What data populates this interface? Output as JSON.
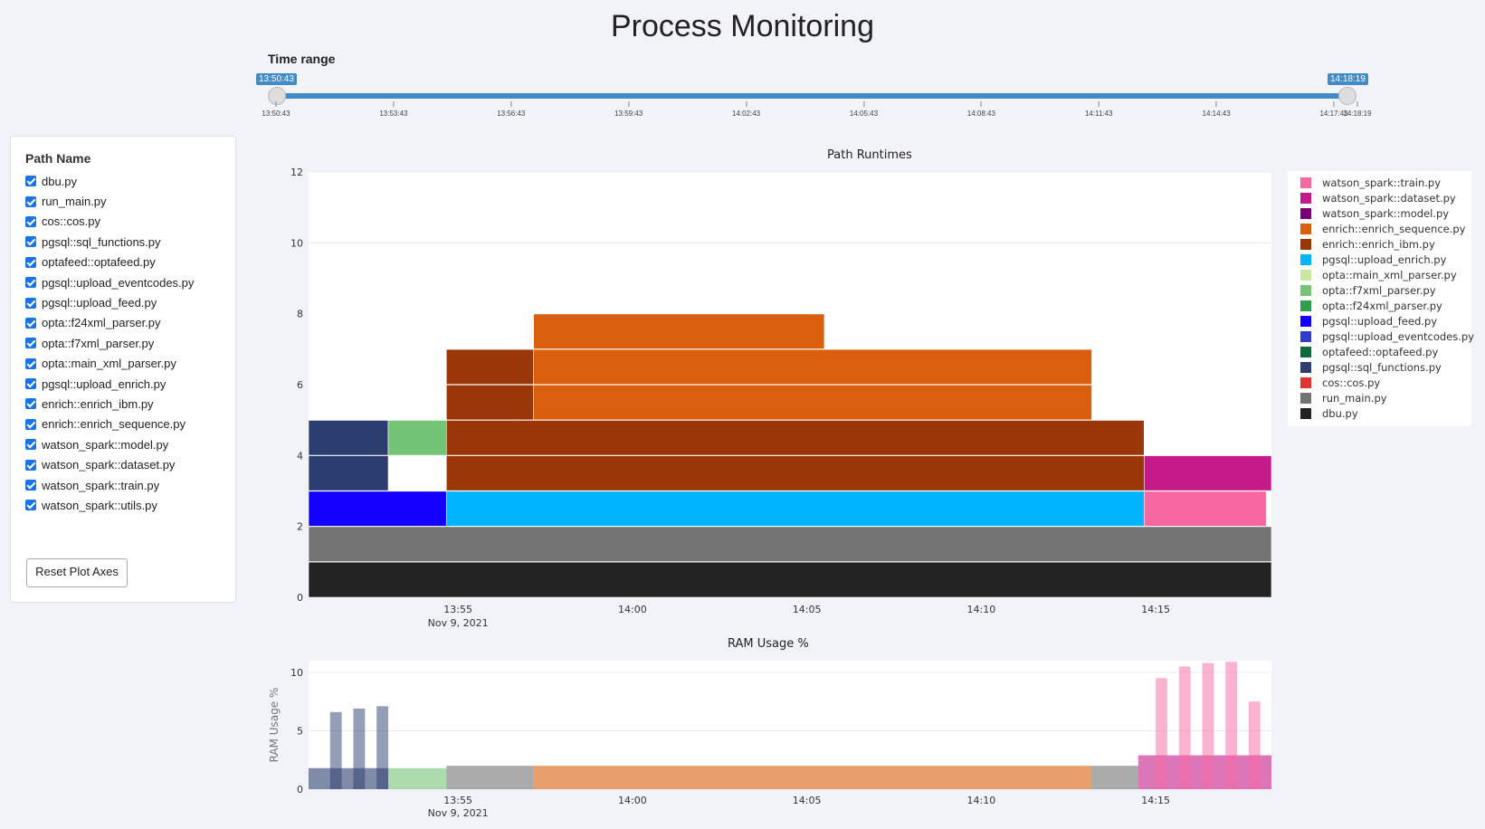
{
  "page_title": "Process Monitoring",
  "slider": {
    "label": "Time range",
    "start": "13:50:43",
    "end": "14:18:19",
    "marks": [
      "13:50:43",
      "13:53:43",
      "13:56:43",
      "13:59:43",
      "14:02:43",
      "14:05:43",
      "14:08:43",
      "14:11:43",
      "14:14:43",
      "14:17:43",
      "14:18:19"
    ]
  },
  "sidebar": {
    "title": "Path Name",
    "items": [
      "dbu.py",
      "run_main.py",
      "cos::cos.py",
      "pgsql::sql_functions.py",
      "optafeed::optafeed.py",
      "pgsql::upload_eventcodes.py",
      "pgsql::upload_feed.py",
      "opta::f24xml_parser.py",
      "opta::f7xml_parser.py",
      "opta::main_xml_parser.py",
      "pgsql::upload_enrich.py",
      "enrich::enrich_ibm.py",
      "enrich::enrich_sequence.py",
      "watson_spark::model.py",
      "watson_spark::dataset.py",
      "watson_spark::train.py",
      "watson_spark::utils.py"
    ],
    "reset_label": "Reset Plot Axes"
  },
  "colors": {
    "dbu": "#222222",
    "run_main": "#737373",
    "cos": "#e3342f",
    "sql_functions": "#2c3e70",
    "optafeed": "#0b6b3a",
    "upload_eventcodes": "#2f3ec8",
    "upload_feed": "#1400ff",
    "f24xml": "#2ca04c",
    "f7xml": "#74c476",
    "main_xml": "#c7e9a0",
    "upload_enrich": "#00b4ff",
    "enrich_ibm": "#9b3608",
    "enrich_sequence": "#d95f0e",
    "model": "#7a0177",
    "dataset": "#c51b8a",
    "train": "#f768a1"
  },
  "chart_data": [
    {
      "type": "bar",
      "title": "Path Runtimes",
      "x_start": "13:50:43",
      "x_end": "14:18:19",
      "x_ticks": [
        "13:55",
        "14:00",
        "14:05",
        "14:10",
        "14:15"
      ],
      "x_date_label": "Nov 9, 2021",
      "ylim": [
        0,
        12
      ],
      "y_ticks": [
        0,
        2,
        4,
        6,
        8,
        10,
        12
      ],
      "legend": [
        "watson_spark::train.py",
        "watson_spark::dataset.py",
        "watson_spark::model.py",
        "enrich::enrich_sequence.py",
        "enrich::enrich_ibm.py",
        "pgsql::upload_enrich.py",
        "opta::main_xml_parser.py",
        "opta::f7xml_parser.py",
        "opta::f24xml_parser.py",
        "pgsql::upload_feed.py",
        "pgsql::upload_eventcodes.py",
        "optafeed::optafeed.py",
        "pgsql::sql_functions.py",
        "cos::cos.py",
        "run_main.py",
        "dbu.py"
      ],
      "legend_keys": [
        "train",
        "dataset",
        "model",
        "enrich_sequence",
        "enrich_ibm",
        "upload_enrich",
        "main_xml",
        "f7xml",
        "f24xml",
        "upload_feed",
        "upload_eventcodes",
        "optafeed",
        "sql_functions",
        "cos",
        "run_main",
        "dbu"
      ],
      "segments": [
        {
          "path": "dbu.py",
          "key": "dbu",
          "y0": 0,
          "y1": 1,
          "start": "13:50:43",
          "end": "14:18:19"
        },
        {
          "path": "run_main.py",
          "key": "run_main",
          "y0": 1,
          "y1": 2,
          "start": "13:50:43",
          "end": "14:18:19"
        },
        {
          "path": "pgsql::upload_feed.py",
          "key": "upload_feed",
          "y0": 2,
          "y1": 3,
          "start": "13:50:43",
          "end": "13:54:40"
        },
        {
          "path": "pgsql::upload_enrich.py",
          "key": "upload_enrich",
          "y0": 2,
          "y1": 3,
          "start": "13:54:40",
          "end": "14:14:40"
        },
        {
          "path": "watson_spark::train.py",
          "key": "train",
          "y0": 2,
          "y1": 3,
          "start": "14:14:40",
          "end": "14:18:10"
        },
        {
          "path": "pgsql::sql_functions.py",
          "key": "sql_functions",
          "y0": 3,
          "y1": 5,
          "start": "13:50:43",
          "end": "13:53:00"
        },
        {
          "path": "opta::f7xml_parser.py",
          "key": "f7xml",
          "y0": 4,
          "y1": 5,
          "start": "13:53:00",
          "end": "13:54:40"
        },
        {
          "path": "enrich::enrich_ibm.py",
          "key": "enrich_ibm",
          "y0": 3,
          "y1": 5,
          "start": "13:54:40",
          "end": "14:14:40"
        },
        {
          "path": "enrich::enrich_ibm.py",
          "key": "enrich_ibm",
          "y0": 5,
          "y1": 7,
          "start": "13:54:40",
          "end": "13:57:10"
        },
        {
          "path": "enrich::enrich_sequence.py",
          "key": "enrich_sequence",
          "y0": 5,
          "y1": 7,
          "start": "13:57:10",
          "end": "14:13:10"
        },
        {
          "path": "enrich::enrich_sequence.py",
          "key": "enrich_sequence",
          "y0": 7,
          "y1": 8,
          "start": "13:57:10",
          "end": "14:05:30"
        },
        {
          "path": "watson_spark::dataset.py",
          "key": "dataset",
          "y0": 3,
          "y1": 4,
          "start": "14:14:40",
          "end": "14:18:19"
        }
      ]
    },
    {
      "type": "area",
      "title": "RAM Usage %",
      "ylabel": "RAM Usage %",
      "x_start": "13:50:43",
      "x_end": "14:18:19",
      "x_ticks": [
        "13:55",
        "14:00",
        "14:05",
        "14:10",
        "14:15"
      ],
      "x_date_label": "Nov 9, 2021",
      "ylim": [
        0,
        11
      ],
      "y_ticks": [
        0,
        5,
        10
      ],
      "series": [
        {
          "path": "pgsql::sql_functions.py",
          "key": "sql_functions",
          "start": "13:50:43",
          "end": "13:53:00",
          "value": 1.8
        },
        {
          "path": "opta::f7xml_parser.py",
          "key": "f7xml",
          "start": "13:53:00",
          "end": "13:54:40",
          "value": 1.8
        },
        {
          "path": "run_main.py",
          "key": "run_main",
          "start": "13:54:40",
          "end": "13:57:10",
          "value": 2.0
        },
        {
          "path": "enrich::enrich_sequence.py",
          "key": "enrich_sequence",
          "start": "13:57:10",
          "end": "14:13:10",
          "value": 2.0
        },
        {
          "path": "run_main.py",
          "key": "run_main",
          "start": "14:13:10",
          "end": "14:14:30",
          "value": 2.0
        },
        {
          "path": "watson_spark::dataset.py",
          "key": "dataset",
          "start": "14:14:30",
          "end": "14:18:19",
          "value": 2.9
        }
      ],
      "peaks": [
        {
          "path": "pgsql::sql_functions.py",
          "key": "sql_functions",
          "start": "13:51:20",
          "end": "13:51:40",
          "value": 6.6
        },
        {
          "path": "pgsql::sql_functions.py",
          "key": "sql_functions",
          "start": "13:52:00",
          "end": "13:52:20",
          "value": 6.9
        },
        {
          "path": "pgsql::sql_functions.py",
          "key": "sql_functions",
          "start": "13:52:40",
          "end": "13:53:00",
          "value": 7.1
        },
        {
          "path": "watson_spark::train.py",
          "key": "train",
          "start": "14:15:00",
          "end": "14:15:20",
          "value": 9.5
        },
        {
          "path": "watson_spark::train.py",
          "key": "train",
          "start": "14:15:40",
          "end": "14:16:00",
          "value": 10.5
        },
        {
          "path": "watson_spark::train.py",
          "key": "train",
          "start": "14:16:20",
          "end": "14:16:40",
          "value": 10.8
        },
        {
          "path": "watson_spark::train.py",
          "key": "train",
          "start": "14:17:00",
          "end": "14:17:20",
          "value": 10.9
        },
        {
          "path": "watson_spark::train.py",
          "key": "train",
          "start": "14:17:40",
          "end": "14:18:00",
          "value": 7.5
        }
      ]
    }
  ]
}
